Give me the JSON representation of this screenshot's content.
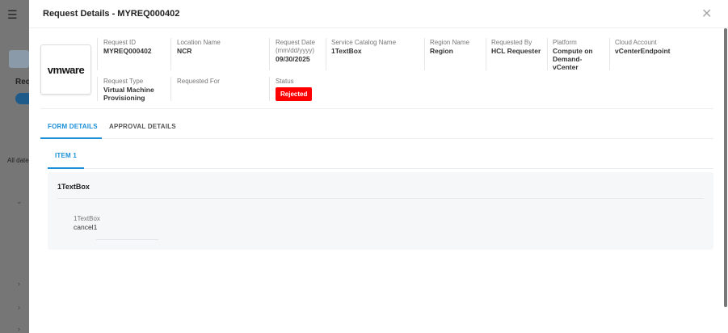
{
  "background": {
    "menu_icon": "hamburger-icon",
    "heading": "Req",
    "filter_text": "All date"
  },
  "modal": {
    "title": "Request Details - MYREQ000402",
    "close_icon": "close-icon",
    "logo_text": "vmware",
    "fields": [
      {
        "label": "Request ID",
        "value": "MYREQ000402"
      },
      {
        "label": "Location Name",
        "value": "NCR"
      },
      {
        "label": "Request Date (mm/dd/yyyy)",
        "value": "09/30/2025"
      },
      {
        "label": "Service Catalog Name",
        "value": "1TextBox"
      },
      {
        "label": "Region Name",
        "value": "Region"
      },
      {
        "label": "Requested By",
        "value": "HCL Requester"
      },
      {
        "label": "Platform",
        "value": "Compute on Demand-vCenter"
      },
      {
        "label": "Cloud Account",
        "value": "vCenterEndpoint"
      },
      {
        "label": "Request Type",
        "value": "Virtual Machine Provisioning"
      },
      {
        "label": "Requested For",
        "value": ""
      },
      {
        "label": "Status",
        "value": "Rejected"
      }
    ],
    "status_color": "#ff0000",
    "accent_color": "#1a8fd8",
    "tabs": [
      {
        "label": "FORM DETAILS",
        "active": true
      },
      {
        "label": "APPROVAL DETAILS",
        "active": false
      }
    ],
    "item_tabs": [
      {
        "label": "ITEM 1",
        "active": true
      }
    ],
    "card": {
      "title": "1TextBox",
      "field_label": "1TextBox",
      "field_value": "cancel1"
    }
  }
}
